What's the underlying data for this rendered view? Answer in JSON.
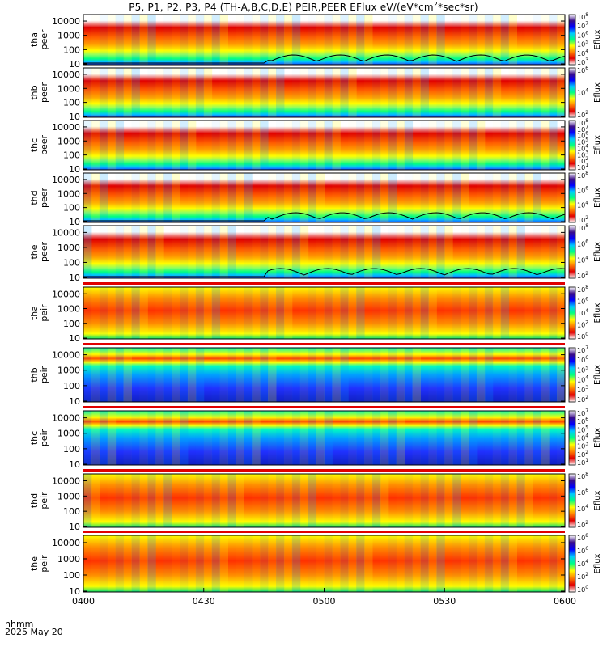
{
  "title": {
    "prefix": "P5, P1, P2, P3, P4 (TH-A,B,C,D,E) PEIR,PEER EFlux eV/(eV*cm",
    "sup": "2",
    "suffix": "*sec*sr)"
  },
  "time_axis": {
    "tick_labels": [
      "0400",
      "0430",
      "0500",
      "0530",
      "0600"
    ],
    "label": "hhmm",
    "date": "2025 May 20"
  },
  "chart_data": {
    "type": "heatmap",
    "x_range": [
      "04:00",
      "06:00"
    ],
    "y_scale": "log",
    "y_tick_labels": [
      "10",
      "100",
      "1000",
      "10000"
    ],
    "colorbar_label": "Eflux",
    "colormap": [
      "#ffffff",
      "#3a0d88",
      "#0000ff",
      "#00c8ff",
      "#00ff80",
      "#ffff00",
      "#ff8000",
      "#e00000",
      "#ffffff"
    ],
    "panels": [
      {
        "label": [
          "tha",
          "peer"
        ],
        "cbar_ticks": [
          "10^8",
          "10^7",
          "10^6",
          "10^5",
          "10^4",
          "10^3"
        ],
        "cbar_exp": [
          8,
          7,
          6,
          5,
          4,
          3
        ],
        "cbar_range": [
          3,
          8
        ],
        "spacecraft_potential": true
      },
      {
        "label": [
          "thb",
          "peer"
        ],
        "cbar_ticks": [
          "10^6",
          "10^4",
          "10^2"
        ],
        "cbar_exp": [
          6,
          4,
          2
        ],
        "cbar_range": [
          2,
          6
        ],
        "spacecraft_potential": false
      },
      {
        "label": [
          "thc",
          "peer"
        ],
        "cbar_ticks": [
          "10^8",
          "10^7",
          "10^6",
          "10^5",
          "10^4",
          "10^3",
          "10^2",
          "10^1"
        ],
        "cbar_exp": [
          8,
          7,
          6,
          5,
          4,
          3,
          2,
          1
        ],
        "cbar_range": [
          1,
          8
        ],
        "spacecraft_potential": false
      },
      {
        "label": [
          "thd",
          "peer"
        ],
        "cbar_ticks": [
          "10^8",
          "10^6",
          "10^4",
          "10^2"
        ],
        "cbar_exp": [
          8,
          6,
          4,
          2
        ],
        "cbar_range": [
          2,
          8
        ],
        "spacecraft_potential": true
      },
      {
        "label": [
          "the",
          "peer"
        ],
        "cbar_ticks": [
          "10^8",
          "10^6",
          "10^4",
          "10^2"
        ],
        "cbar_exp": [
          8,
          6,
          4,
          2
        ],
        "cbar_range": [
          2,
          8
        ],
        "spacecraft_potential": true
      },
      {
        "label": [
          "tha",
          "peir"
        ],
        "cbar_ticks": [
          "10^8",
          "10^6",
          "10^4",
          "10^2",
          "10^0"
        ],
        "cbar_exp": [
          8,
          6,
          4,
          2,
          0
        ],
        "cbar_range": [
          0,
          8
        ],
        "spacecraft_potential": false
      },
      {
        "label": [
          "thb",
          "peir"
        ],
        "cbar_ticks": [
          "10^7",
          "10^6",
          "10^5",
          "10^4",
          "10^3",
          "10^2"
        ],
        "cbar_exp": [
          7,
          6,
          5,
          4,
          3,
          2
        ],
        "cbar_range": [
          2,
          7
        ],
        "spacecraft_potential": false
      },
      {
        "label": [
          "thc",
          "peir"
        ],
        "cbar_ticks": [
          "10^7",
          "10^6",
          "10^5",
          "10^4",
          "10^3",
          "10^2",
          "10^1"
        ],
        "cbar_exp": [
          7,
          6,
          5,
          4,
          3,
          2,
          1
        ],
        "cbar_range": [
          1,
          7
        ],
        "spacecraft_potential": false
      },
      {
        "label": [
          "thd",
          "peir"
        ],
        "cbar_ticks": [
          "10^8",
          "10^6",
          "10^4",
          "10^2"
        ],
        "cbar_exp": [
          8,
          6,
          4,
          2
        ],
        "cbar_range": [
          2,
          8
        ],
        "spacecraft_potential": false
      },
      {
        "label": [
          "the",
          "peir"
        ],
        "cbar_ticks": [
          "10^8",
          "10^6",
          "10^4",
          "10^2",
          "10^0"
        ],
        "cbar_exp": [
          8,
          6,
          4,
          2,
          0
        ],
        "cbar_range": [
          0,
          8
        ],
        "spacecraft_potential": false
      }
    ]
  }
}
